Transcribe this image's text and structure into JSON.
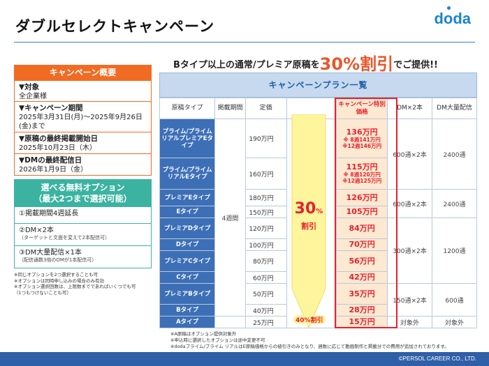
{
  "title": "ダブルセレクトキャンペーン",
  "logo": "doda",
  "headline": {
    "pre": "Bタイプ以上の通常/プレミア原稿を",
    "big": "30%割引",
    "post": "でご提供!!"
  },
  "overview": {
    "header": "キャンペーン概要",
    "target": {
      "title": "▼対象",
      "text": "全企業様"
    },
    "period": {
      "title": "▼キャンペーン期間",
      "text": "2025年3月31日(月)〜2025年9月26日(金)まで"
    },
    "last_start": {
      "title": "▼原稿の最終掲載開始日",
      "text": "2025年10月23日（木）"
    },
    "dm_last": {
      "title": "▼DMの最終配信日",
      "text": "2026年1月9日（金）"
    }
  },
  "options": {
    "header_line1": "選べる無料オプション",
    "header_line2": "（最大2つまで選択可能）",
    "items": [
      {
        "label": "①掲載期間4週延長",
        "sub": ""
      },
      {
        "label": "②DM×2本",
        "sub": "（ターゲットと文面を変えて2本配信可）"
      },
      {
        "label": "③DM大量配信×1本",
        "sub": "（配信通数3倍のDMが1本配信可）"
      }
    ],
    "notes": [
      "※同じオプションを2つ選択することも可",
      "※オプションは同時申し込みの場合のみ有効",
      "※オプション選択回数は、上限数までであればいくつでも可",
      "（1つもつけないことも可）"
    ]
  },
  "plan": {
    "header": "キャンペーンプラン一覧",
    "columns": {
      "type": "原稿タイプ",
      "period": "掲載期間",
      "price": "定価",
      "campaign": "キャンペーン特別価格",
      "dm2": "DM×2本",
      "dm_bulk": "DM大量配信"
    },
    "period_value": "4週間",
    "rows": [
      {
        "type": "プライム/プライム リアルプレミアEタイプ",
        "price": "190万円",
        "camp": "136万円",
        "camp_note1": "※ 8週141万円",
        "camp_note2": "※12週146万円"
      },
      {
        "type": "プライム/プライム リアルEタイプ",
        "price": "160万円",
        "camp": "115万円",
        "camp_note1": "※ 8週120万円",
        "camp_note2": "※12週125万円"
      },
      {
        "type": "プレミアEタイプ",
        "price": "180万円",
        "camp": "126万円"
      },
      {
        "type": "Eタイプ",
        "price": "150万円",
        "camp": "105万円"
      },
      {
        "type": "プレミアDタイプ",
        "price": "120万円",
        "camp": "84万円"
      },
      {
        "type": "Dタイプ",
        "price": "100万円",
        "camp": "70万円"
      },
      {
        "type": "プレミアCタイプ",
        "price": "80万円",
        "camp": "56万円"
      },
      {
        "type": "Cタイプ",
        "price": "60万円",
        "camp": "42万円"
      },
      {
        "type": "プレミアBタイプ",
        "price": "50万円",
        "camp": "35万円"
      },
      {
        "type": "Bタイプ",
        "price": "40万円",
        "camp": "28万円"
      },
      {
        "type": "Aタイプ",
        "price": "25万円",
        "camp": "15万円"
      }
    ],
    "dm_groups": [
      {
        "dm2": "600通×2本",
        "bulk": "2400通"
      },
      {
        "dm2": "600通×2本",
        "bulk": "2400通"
      },
      {
        "dm2": "300通×2本",
        "bulk": "1200通"
      },
      {
        "dm2": "150通×2本",
        "bulk": "600通"
      },
      {
        "dm2": "対象外",
        "bulk": "対象外"
      }
    ],
    "arrow_number": "30",
    "arrow_percent": "%",
    "arrow_label": "割引",
    "arrow_bottom": "40%割引"
  },
  "footnotes": [
    "※A原稿はオプション提供対象外",
    "※申込時に選択したオプションは途中変更不可",
    "※dodaプライム/プライム リアルはE原稿価格からの値引きのみとなり、週数に応じて動画制作と掲載分での費用が追加されております。"
  ],
  "footer": "©PERSOL CAREER CO., LTD.",
  "colors": {
    "orange": "#f26b22",
    "teal": "#3bb3a0",
    "blue": "#3d6fb7",
    "red": "#e8202c",
    "campaign_bg": "#fde8d1",
    "arrow": "#fff59d"
  }
}
